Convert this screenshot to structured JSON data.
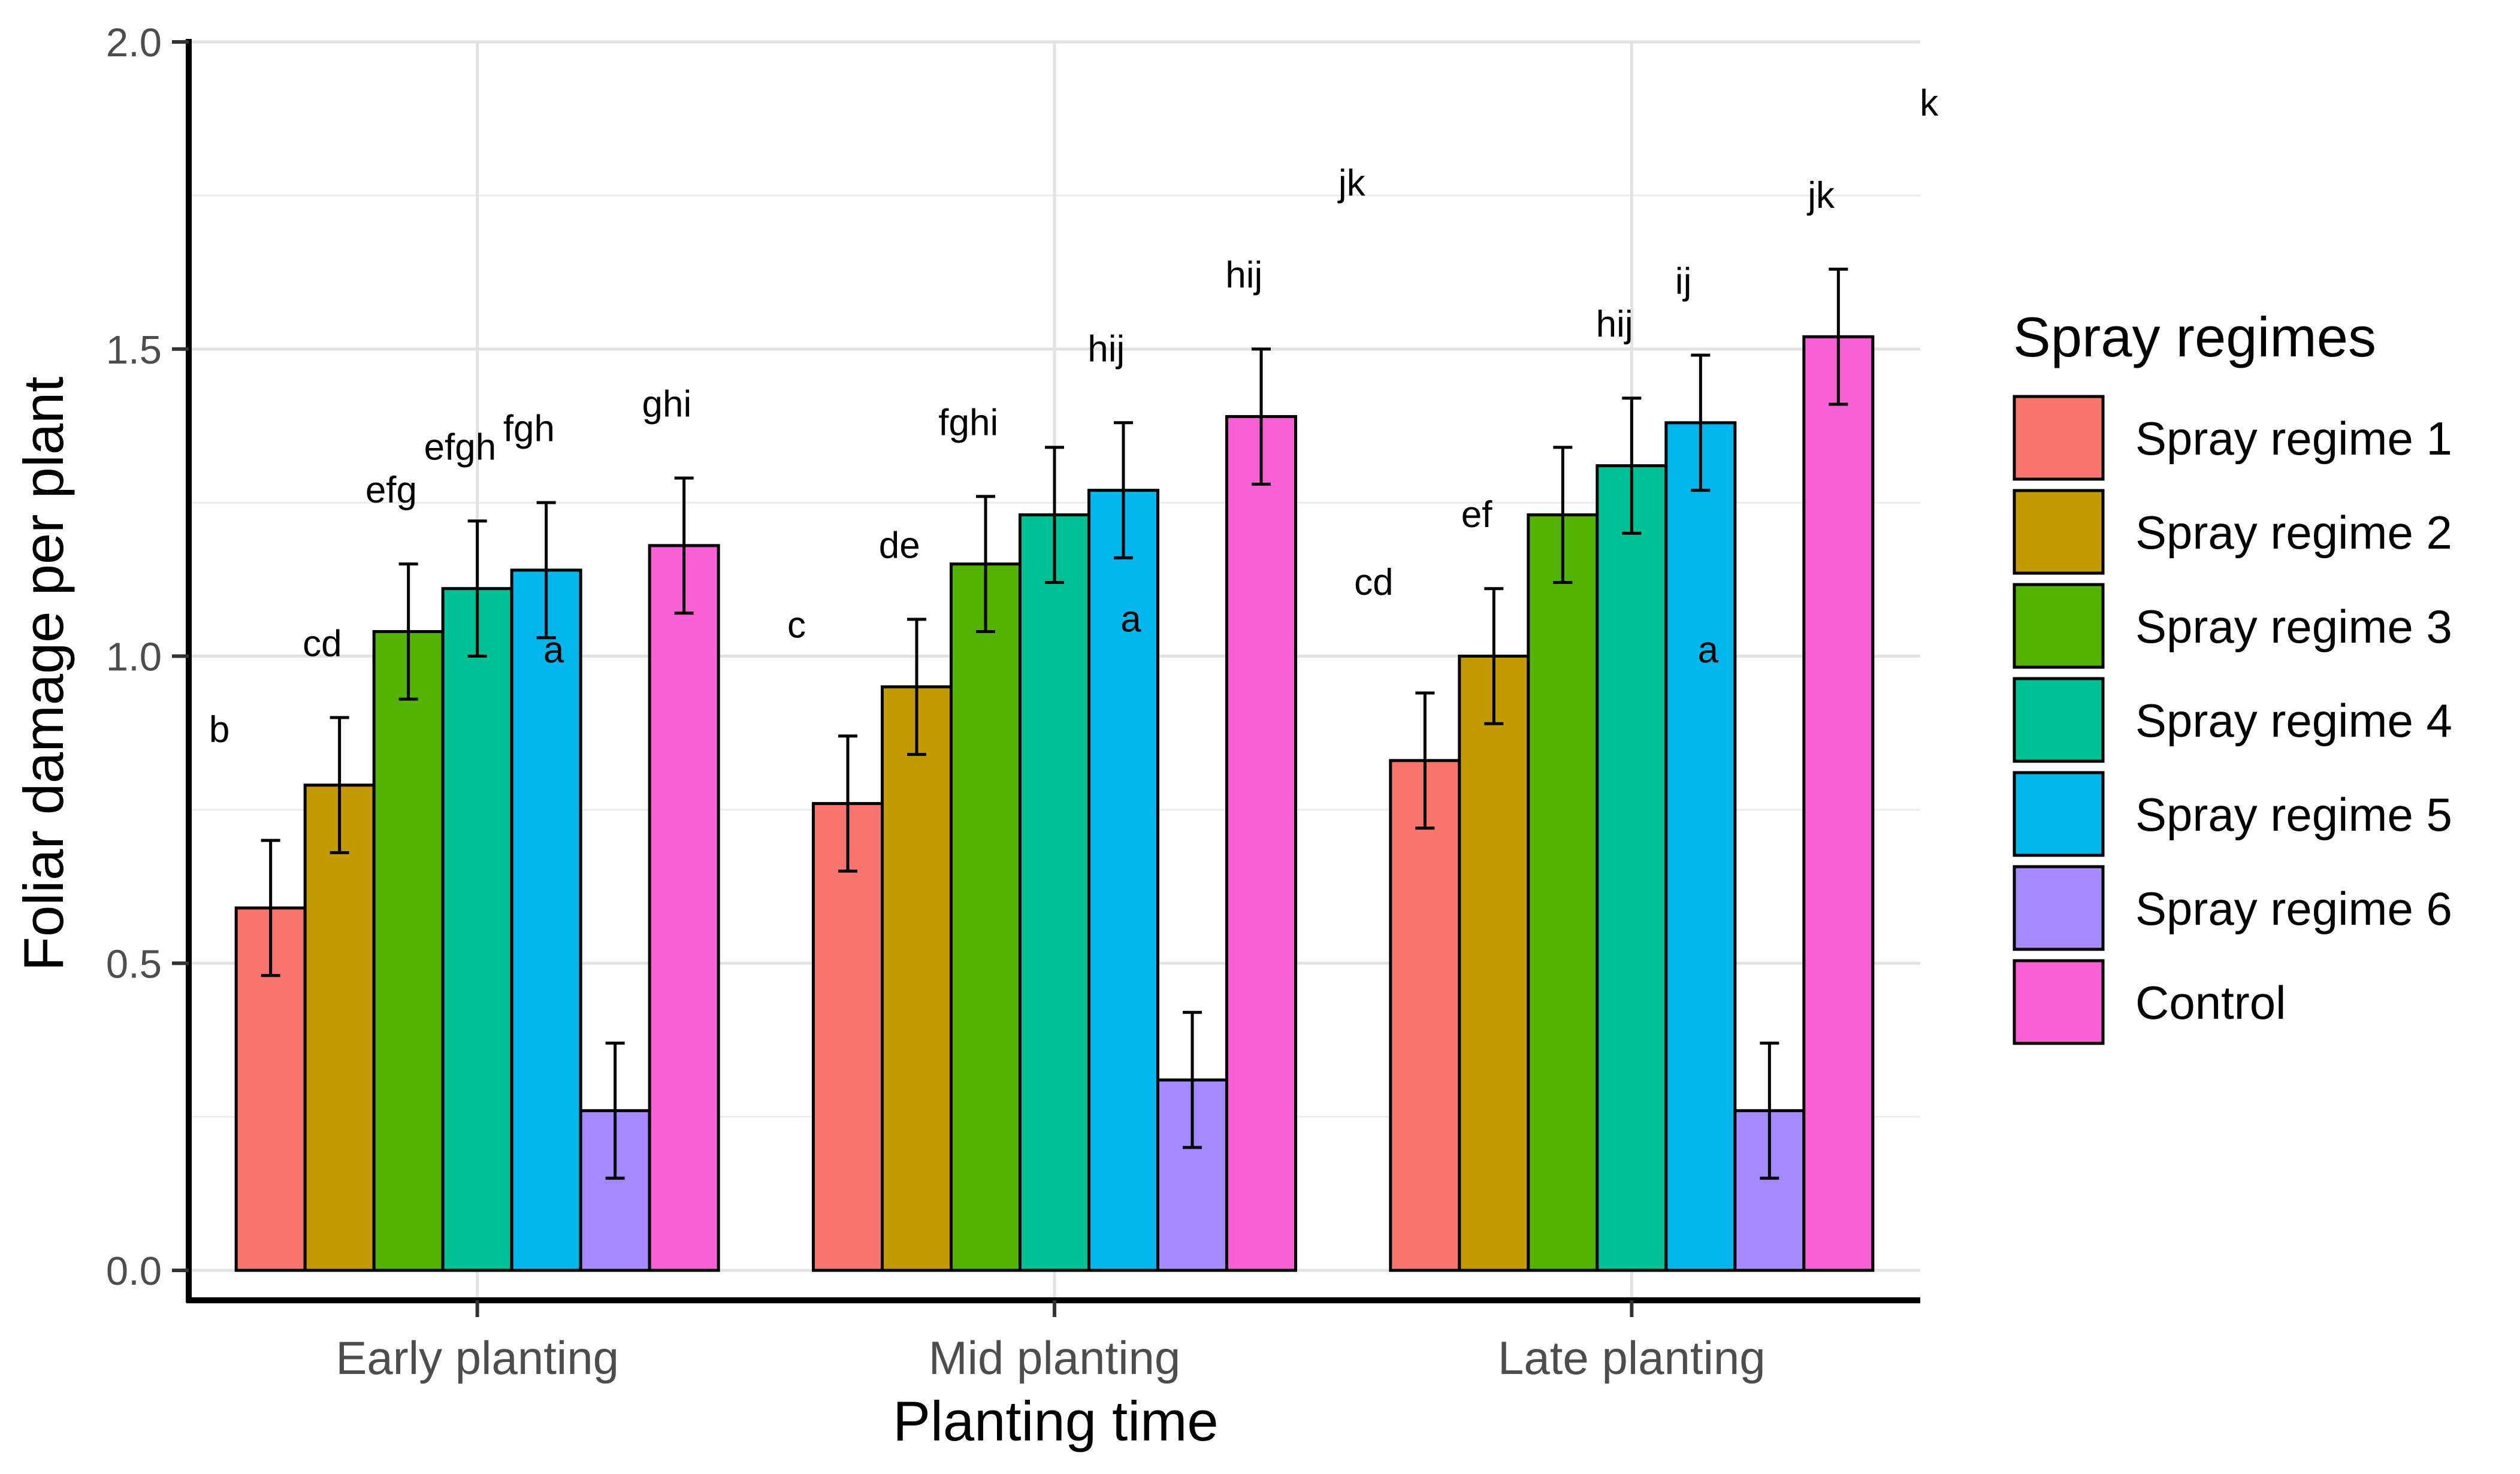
{
  "chart_data": {
    "type": "bar",
    "title": "",
    "xlabel": "Planting time",
    "ylabel": "Foliar damage per plant",
    "ylim": [
      0,
      2.0
    ],
    "yticks": [
      "0.0",
      "0.5",
      "1.0",
      "1.5",
      "2.0"
    ],
    "grid": true,
    "legend_title": "Spray regimes",
    "legend_position": "right",
    "categories": [
      "Early planting",
      "Mid planting",
      "Late planting"
    ],
    "series": [
      {
        "name": "Spray regime 1",
        "color": "#F8766D",
        "values": [
          0.59,
          0.76,
          0.83
        ],
        "error": [
          0.11,
          0.11,
          0.11
        ],
        "letters": [
          "b",
          "c",
          "cd"
        ]
      },
      {
        "name": "Spray regime 2",
        "color": "#C49A00",
        "values": [
          0.79,
          0.95,
          1.0
        ],
        "error": [
          0.11,
          0.11,
          0.11
        ],
        "letters": [
          "cd",
          "de",
          "ef"
        ]
      },
      {
        "name": "Spray regime 3",
        "color": "#53B400",
        "values": [
          1.04,
          1.15,
          1.23
        ],
        "error": [
          0.11,
          0.11,
          0.11
        ],
        "letters": [
          "efg",
          "fghi",
          ""
        ]
      },
      {
        "name": "Spray regime 4",
        "color": "#00C094",
        "values": [
          1.11,
          1.23,
          1.31
        ],
        "error": [
          0.11,
          0.11,
          0.11
        ],
        "letters": [
          "efgh",
          "",
          "hij"
        ]
      },
      {
        "name": "Spray regime 5",
        "color": "#00B6EB",
        "values": [
          1.14,
          1.27,
          1.38
        ],
        "error": [
          0.11,
          0.11,
          0.11
        ],
        "letters": [
          "fgh",
          "hij",
          "ij"
        ]
      },
      {
        "name": "Spray regime 6",
        "color": "#A58AFF",
        "values": [
          0.26,
          0.31,
          0.26
        ],
        "error": [
          0.11,
          0.11,
          0.11
        ],
        "letters": [
          "a",
          "a",
          "a"
        ]
      },
      {
        "name": "Control",
        "color": "#FB61D7",
        "values": [
          1.18,
          1.39,
          1.52
        ],
        "error": [
          0.11,
          0.11,
          0.11
        ],
        "letters": [
          "ghi",
          "hij jk",
          "jk k"
        ]
      }
    ]
  }
}
